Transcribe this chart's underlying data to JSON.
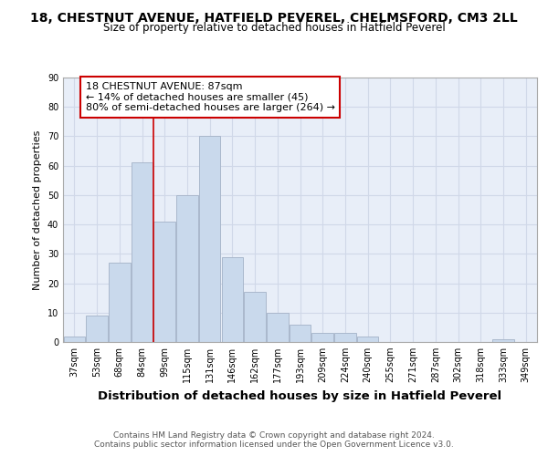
{
  "title": "18, CHESTNUT AVENUE, HATFIELD PEVEREL, CHELMSFORD, CM3 2LL",
  "subtitle": "Size of property relative to detached houses in Hatfield Peverel",
  "xlabel": "Distribution of detached houses by size in Hatfield Peverel",
  "ylabel": "Number of detached properties",
  "categories": [
    "37sqm",
    "53sqm",
    "68sqm",
    "84sqm",
    "99sqm",
    "115sqm",
    "131sqm",
    "146sqm",
    "162sqm",
    "177sqm",
    "193sqm",
    "209sqm",
    "224sqm",
    "240sqm",
    "255sqm",
    "271sqm",
    "287sqm",
    "302sqm",
    "318sqm",
    "333sqm",
    "349sqm"
  ],
  "values": [
    2,
    9,
    27,
    61,
    41,
    50,
    70,
    29,
    17,
    10,
    6,
    3,
    3,
    2,
    0,
    0,
    0,
    0,
    0,
    1,
    0
  ],
  "bar_color": "#c9d9ec",
  "bar_edge_color": "#aab8cc",
  "grid_color": "#d0d8e8",
  "background_color": "#e8eef8",
  "vline_color": "#cc0000",
  "vline_x_index": 3,
  "annotation_box_text": "18 CHESTNUT AVENUE: 87sqm\n← 14% of detached houses are smaller (45)\n80% of semi-detached houses are larger (264) →",
  "annotation_box_color": "#cc0000",
  "annotation_box_bg": "#ffffff",
  "ylim": [
    0,
    90
  ],
  "yticks": [
    0,
    10,
    20,
    30,
    40,
    50,
    60,
    70,
    80,
    90
  ],
  "footer": "Contains HM Land Registry data © Crown copyright and database right 2024.\nContains public sector information licensed under the Open Government Licence v3.0.",
  "title_fontsize": 10,
  "subtitle_fontsize": 8.5,
  "xlabel_fontsize": 9.5,
  "ylabel_fontsize": 8,
  "tick_fontsize": 7,
  "annotation_fontsize": 8,
  "footer_fontsize": 6.5
}
